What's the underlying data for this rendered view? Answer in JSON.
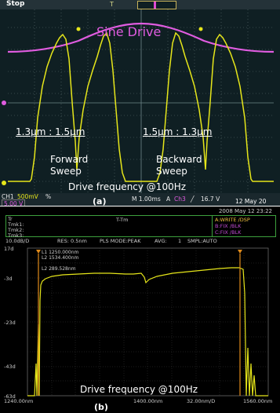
{
  "panel_a": {
    "status": "Stop",
    "sine_label": "Sine Drive",
    "fwd_range": "1.3µm : 1.5µm",
    "bwd_range": "1.5µm : 1.3µm",
    "forward_line1": "Forward",
    "forward_line2": "Sweep",
    "backward_line1": "Backward",
    "backward_line2": "Sweep",
    "drive_freq": "Drive frequency @100Hz",
    "caption": "(a)",
    "ch1": "CH1",
    "ch1_scale": "500mV",
    "ch1_unit": "%",
    "ch2_scale": "5.00 V",
    "timebase": "M 1.00ms",
    "trigger_src": "A",
    "trigger_ch": "Ch3",
    "trigger_slope": "╱",
    "trigger_level": "16.7 V",
    "date": "12 May 20",
    "colors": {
      "trace": "#e6e61a",
      "sine": "#e05ce0",
      "grid": "#5b7072"
    }
  },
  "panel_b": {
    "datetime": "2008 May 12 23:22",
    "info_rows": [
      "Tr",
      "Tmk1:",
      "Tmk2:",
      "Tmk3:"
    ],
    "info_title": "T-Tm",
    "trace_a": "A:WRITE   /DSP",
    "trace_b": "B:FIX       /BLK",
    "trace_c": "C:FIX       /BLK",
    "settings": {
      "scale": "10.0dB/D",
      "res": "RES: 0.5nm",
      "mode": "PLS MODE:PEAK",
      "avg": "AVG:",
      "avg_val": "1",
      "smpl": "SMPL:AUTO"
    },
    "markers": [
      "L1  1250.000nm",
      "L2  1534.400nm",
      "L2  289.528nm"
    ],
    "y_ticks": [
      "17d",
      "-3d",
      "-23d",
      "-43d",
      "-63d"
    ],
    "x_ticks": [
      "1240.00nm",
      "1400.00nm",
      "1560.00nm"
    ],
    "x_sub": [
      "32.00nm/D"
    ],
    "drive_freq": "Drive frequency @100Hz",
    "caption": "(b)",
    "colors": {
      "trace": "#e6e61a",
      "grid": "#3a3a3a",
      "frame": "#3da03d",
      "trace_write": "#f0c040",
      "trace_fix": "#c04bd2"
    }
  }
}
